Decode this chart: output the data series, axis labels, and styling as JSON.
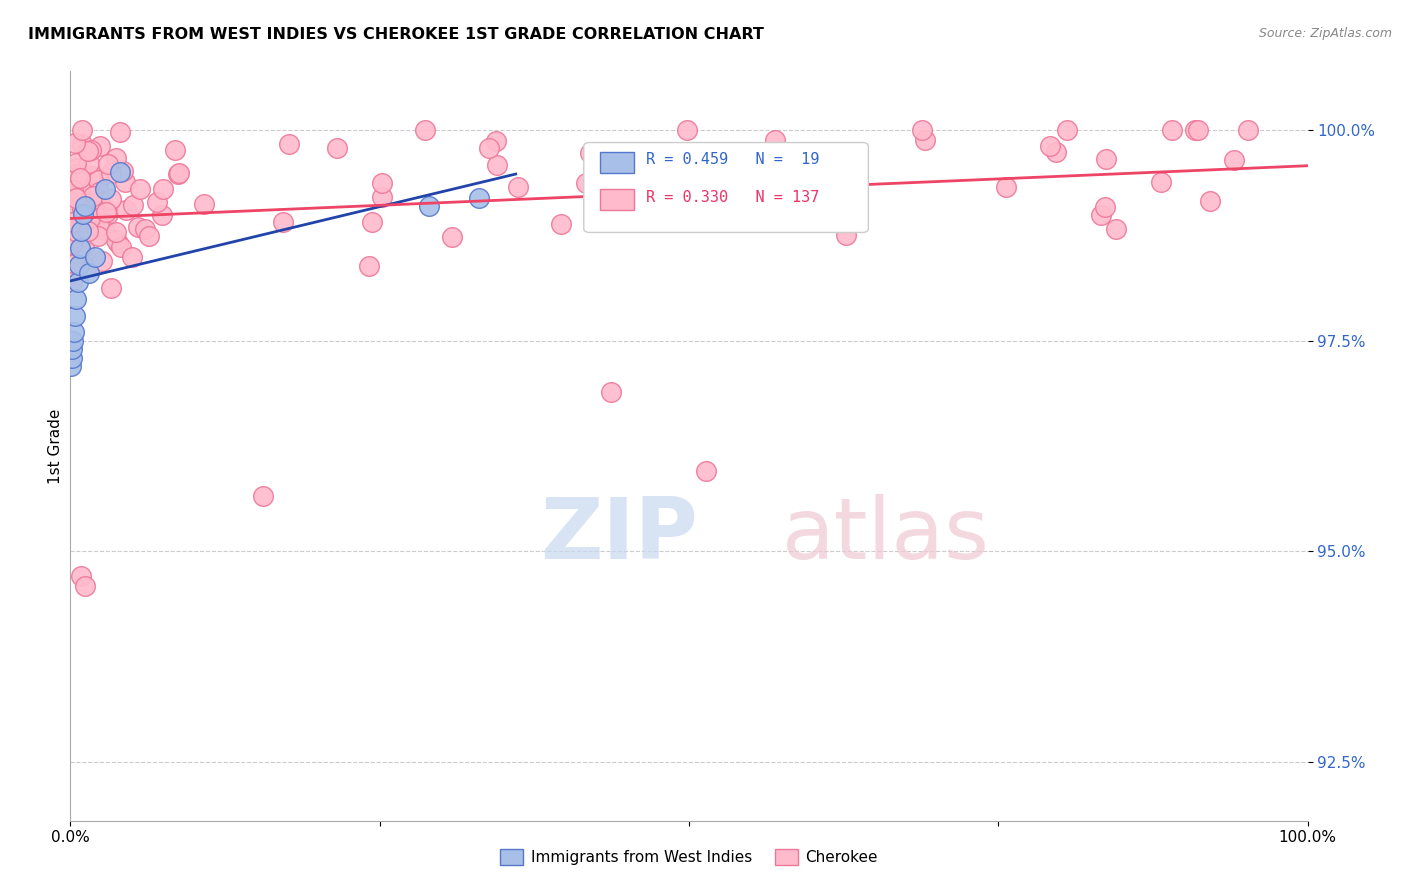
{
  "title": "IMMIGRANTS FROM WEST INDIES VS CHEROKEE 1ST GRADE CORRELATION CHART",
  "source": "Source: ZipAtlas.com",
  "ylabel": "1st Grade",
  "yticks": [
    92.5,
    95.0,
    97.5,
    100.0
  ],
  "ytick_labels": [
    "92.5%",
    "95.0%",
    "97.5%",
    "100.0%"
  ],
  "xlim": [
    0.0,
    100.0
  ],
  "ylim": [
    91.8,
    100.7
  ],
  "blue_face": "#a8bfe8",
  "blue_edge": "#5577cc",
  "pink_face": "#ffbbcc",
  "pink_edge": "#ee7799",
  "blue_line": "#2244aa",
  "pink_line": "#ee4466",
  "legend_blue_text": "R = 0.459   N =  19",
  "legend_pink_text": "R = 0.330   N = 137",
  "legend_blue_color": "#3366cc",
  "legend_pink_color": "#ee3366",
  "watermark_zip_color": "#d0dff5",
  "watermark_atlas_color": "#f5d0dc",
  "bottom_legend_blue_label": "Immigrants from West Indies",
  "bottom_legend_pink_label": "Cherokee"
}
